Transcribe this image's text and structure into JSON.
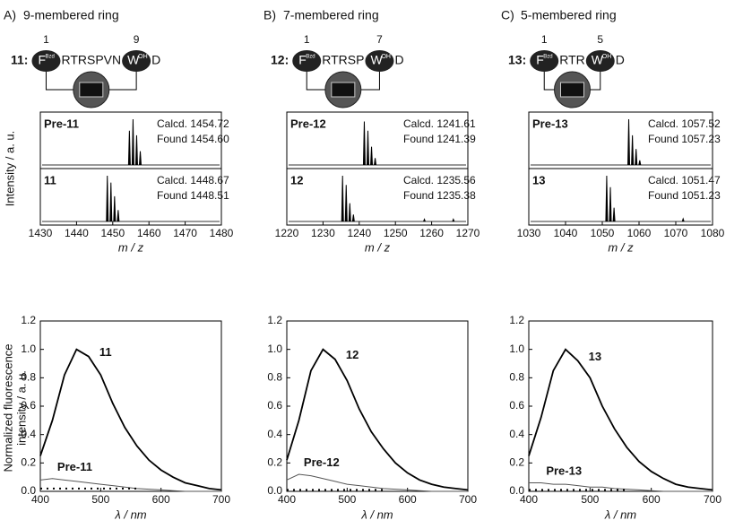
{
  "panels": [
    {
      "letter": "A)",
      "title": "9-membered ring",
      "compound": "11:",
      "res1": "F",
      "sup1": "Bzd",
      "pos1": "1",
      "middle": "RTRSPVN",
      "res2": "W",
      "sup2": "OH",
      "pos2": "9",
      "end": "D"
    },
    {
      "letter": "B)",
      "title": "7-membered ring",
      "compound": "12:",
      "res1": "F",
      "sup1": "Bzd",
      "pos1": "1",
      "middle": "RTRSP",
      "res2": "W",
      "sup2": "OH",
      "pos2": "7",
      "end": "D"
    },
    {
      "letter": "C)",
      "title": "5-membered ring",
      "compound": "13:",
      "res1": "F",
      "sup1": "Bzd",
      "pos1": "1",
      "middle": "RTR",
      "res2": "W",
      "sup2": "OH",
      "pos2": "5",
      "end": "D"
    }
  ],
  "chart_data": [
    {
      "type": "spectrum",
      "ylabel": "Intensity / a. u.",
      "xlabel": "m / z",
      "xlim": [
        1430,
        1480
      ],
      "xticks": [
        1430,
        1440,
        1450,
        1460,
        1470,
        1480
      ],
      "traces": [
        {
          "name": "Pre-11",
          "calcd": "Calcd. 1454.72",
          "found": "Found 1454.60",
          "x": [
            1454.6,
            1455.6,
            1456.6,
            1457.6
          ],
          "values": [
            0.75,
            1.0,
            0.65,
            0.3
          ]
        },
        {
          "name": "11",
          "calcd": "Calcd. 1448.67",
          "found": "Found 1448.51",
          "x": [
            1448.5,
            1449.5,
            1450.5,
            1451.5
          ],
          "values": [
            1.0,
            0.85,
            0.55,
            0.25
          ]
        }
      ]
    },
    {
      "type": "spectrum",
      "xlabel": "m / z",
      "xlim": [
        1220,
        1270
      ],
      "xticks": [
        1220,
        1230,
        1240,
        1250,
        1260,
        1270
      ],
      "traces": [
        {
          "name": "Pre-12",
          "calcd": "Calcd. 1241.61",
          "found": "Found 1241.39",
          "x": [
            1241.4,
            1242.4,
            1243.4,
            1244.4
          ],
          "values": [
            0.95,
            0.75,
            0.4,
            0.15
          ]
        },
        {
          "name": "12",
          "calcd": "Calcd. 1235.56",
          "found": "Found 1235.38",
          "x": [
            1235.4,
            1236.4,
            1237.4,
            1238.4,
            1258,
            1266
          ],
          "values": [
            1.0,
            0.8,
            0.4,
            0.15,
            0.05,
            0.05
          ]
        }
      ]
    },
    {
      "type": "spectrum",
      "xlabel": "m / z",
      "xlim": [
        1030,
        1080
      ],
      "xticks": [
        1030,
        1040,
        1050,
        1060,
        1070,
        1080
      ],
      "traces": [
        {
          "name": "Pre-13",
          "calcd": "Calcd. 1057.52",
          "found": "Found 1057.23",
          "x": [
            1057.2,
            1058.2,
            1059.2,
            1060.2
          ],
          "values": [
            1.0,
            0.65,
            0.35,
            0.1
          ]
        },
        {
          "name": "13",
          "calcd": "Calcd. 1051.47",
          "found": "Found 1051.23",
          "x": [
            1051.2,
            1052.2,
            1053.2,
            1072
          ],
          "values": [
            1.0,
            0.75,
            0.3,
            0.06
          ]
        }
      ]
    },
    {
      "type": "line",
      "ylabel": [
        "Normalized fluorescence",
        "intensity / a. u."
      ],
      "xlabel": "λ / nm",
      "x": [
        400,
        420,
        440,
        460,
        480,
        500,
        520,
        540,
        560,
        580,
        600,
        620,
        640,
        660,
        680,
        700
      ],
      "xlim": [
        400,
        700
      ],
      "xticks": [
        400,
        500,
        600,
        700
      ],
      "ylim": [
        0,
        1.2
      ],
      "yticks": [
        {
          "value": 0,
          "label": "0.0"
        },
        0.2,
        0.4,
        0.6,
        0.8,
        {
          "value": 1,
          "label": "1.0"
        },
        1.2
      ],
      "series": [
        {
          "name": "11",
          "color": "#000000",
          "values": [
            0.25,
            0.5,
            0.82,
            1.0,
            0.95,
            0.82,
            0.62,
            0.45,
            0.32,
            0.22,
            0.15,
            0.1,
            0.06,
            0.04,
            0.02,
            0.01
          ]
        },
        {
          "name": "Pre-11",
          "color": "#555555",
          "values": [
            0.08,
            0.09,
            0.08,
            0.07,
            0.06,
            0.05,
            0.04,
            0.03,
            0.02,
            0.015,
            0.01,
            0.005,
            0.0,
            0.0,
            0.0,
            0.0
          ]
        },
        {
          "color": "#000000",
          "dashed": true,
          "values": [
            0.02,
            0.02,
            0.02,
            0.02,
            0.02,
            0.02,
            0.02,
            0.02,
            0.02,
            null,
            null,
            null,
            null,
            null,
            null,
            null
          ]
        }
      ]
    },
    {
      "type": "line",
      "xlabel": "λ / nm",
      "x": [
        400,
        420,
        440,
        460,
        480,
        500,
        520,
        540,
        560,
        580,
        600,
        620,
        640,
        660,
        680,
        700
      ],
      "xlim": [
        400,
        700
      ],
      "xticks": [
        400,
        500,
        600,
        700
      ],
      "ylim": [
        0,
        1.2
      ],
      "yticks": [
        {
          "value": 0,
          "label": "0.0"
        },
        0.2,
        0.4,
        0.6,
        0.8,
        {
          "value": 1,
          "label": "1.0"
        },
        1.2
      ],
      "series": [
        {
          "name": "12",
          "color": "#000000",
          "values": [
            0.22,
            0.5,
            0.85,
            1.0,
            0.93,
            0.78,
            0.58,
            0.42,
            0.3,
            0.2,
            0.13,
            0.08,
            0.05,
            0.03,
            0.02,
            0.01
          ]
        },
        {
          "name": "Pre-12",
          "color": "#555555",
          "values": [
            0.08,
            0.12,
            0.11,
            0.09,
            0.07,
            0.05,
            0.04,
            0.03,
            0.02,
            0.015,
            0.01,
            0.005,
            0.0,
            0.0,
            0.0,
            0.0
          ]
        },
        {
          "color": "#000000",
          "dashed": true,
          "values": [
            0.01,
            0.01,
            0.01,
            0.01,
            0.01,
            0.01,
            0.01,
            0.01,
            0.01,
            null,
            null,
            null,
            null,
            null,
            null,
            null
          ]
        }
      ]
    },
    {
      "type": "line",
      "xlabel": "λ / nm",
      "x": [
        400,
        420,
        440,
        460,
        480,
        500,
        520,
        540,
        560,
        580,
        600,
        620,
        640,
        660,
        680,
        700
      ],
      "xlim": [
        400,
        700
      ],
      "xticks": [
        400,
        500,
        600,
        700
      ],
      "ylim": [
        0,
        1.2
      ],
      "yticks": [
        {
          "value": 0,
          "label": "0.0"
        },
        0.2,
        0.4,
        0.6,
        0.8,
        {
          "value": 1,
          "label": "1.0"
        },
        1.2
      ],
      "series": [
        {
          "name": "13",
          "color": "#000000",
          "values": [
            0.25,
            0.52,
            0.85,
            1.0,
            0.92,
            0.8,
            0.6,
            0.44,
            0.31,
            0.21,
            0.14,
            0.09,
            0.05,
            0.03,
            0.02,
            0.01
          ]
        },
        {
          "name": "Pre-13",
          "color": "#555555",
          "values": [
            0.06,
            0.06,
            0.05,
            0.05,
            0.04,
            0.03,
            0.03,
            0.02,
            0.015,
            0.01,
            0.005,
            0.0,
            0.0,
            0.0,
            0.0,
            0.0
          ]
        },
        {
          "color": "#000000",
          "dashed": true,
          "values": [
            0.01,
            0.01,
            0.01,
            0.01,
            0.01,
            0.01,
            0.01,
            0.01,
            0.01,
            null,
            null,
            null,
            null,
            null,
            null,
            null
          ]
        }
      ]
    }
  ]
}
